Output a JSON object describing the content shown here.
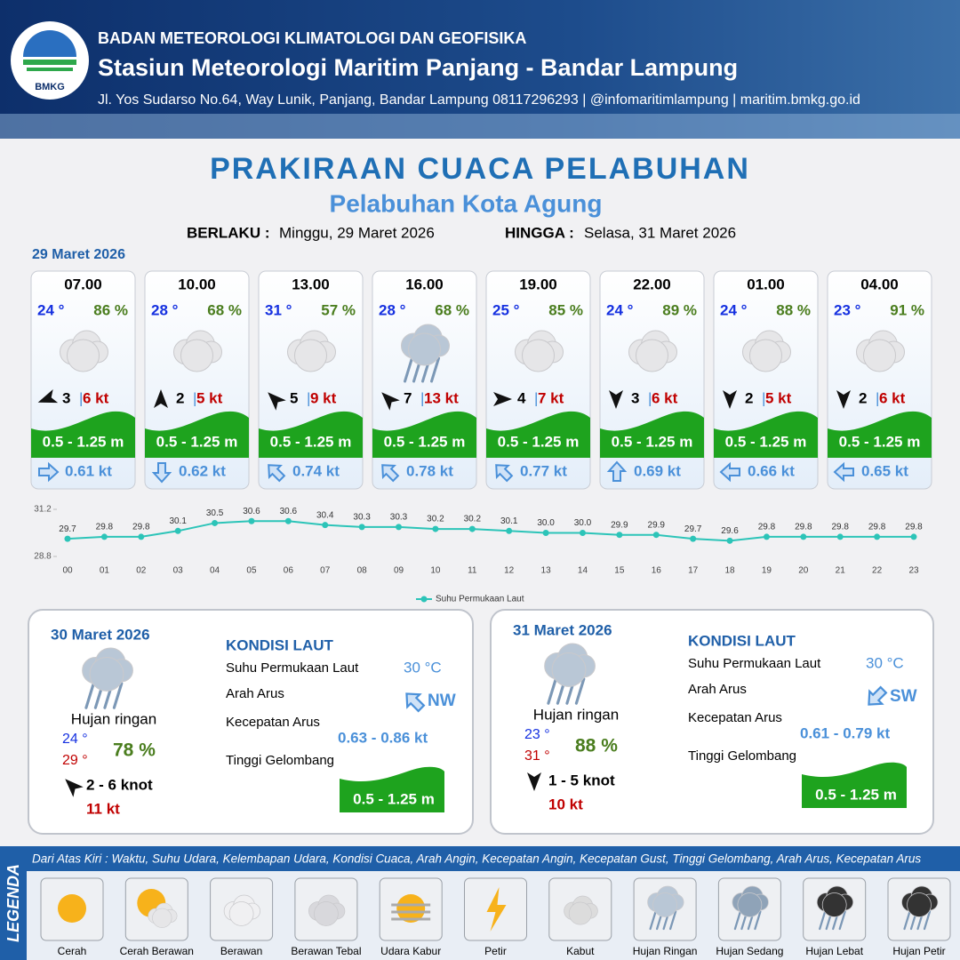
{
  "header": {
    "logo_text": "BMKG",
    "org": "BADAN METEOROLOGI KLIMATOLOGI DAN GEOFISIKA",
    "station": "Stasiun Meteorologi Maritim Panjang - Bandar Lampung",
    "address": "Jl. Yos Sudarso No.64, Way Lunik, Panjang, Bandar Lampung 08117296293 | @infomaritimlampung | maritim.bmkg.go.id"
  },
  "title": "PRAKIRAAN CUACA PELABUHAN",
  "subtitle": "Pelabuhan Kota Agung",
  "validity": {
    "from_label": "BERLAKU :",
    "from": "Minggu, 29 Maret 2026",
    "to_label": "HINGGA :",
    "to": "Selasa, 31 Maret 2026"
  },
  "day1_date": "29 Maret 2026",
  "forecasts": [
    {
      "time": "07.00",
      "temp": "24 °",
      "humidity": "86 %",
      "wind": "3",
      "gust": "6 kt",
      "wave": "0.5 - 1.25 m",
      "current": "0.61 kt"
    },
    {
      "time": "10.00",
      "temp": "28 °",
      "humidity": "68 %",
      "wind": "2",
      "gust": "5 kt",
      "wave": "0.5 - 1.25 m",
      "current": "0.62 kt"
    },
    {
      "time": "13.00",
      "temp": "31 °",
      "humidity": "57 %",
      "wind": "5",
      "gust": "9 kt",
      "wave": "0.5 - 1.25 m",
      "current": "0.74 kt"
    },
    {
      "time": "16.00",
      "temp": "28 °",
      "humidity": "68 %",
      "wind": "7",
      "gust": "13 kt",
      "wave": "0.5 - 1.25 m",
      "current": "0.78 kt"
    },
    {
      "time": "19.00",
      "temp": "25 °",
      "humidity": "85 %",
      "wind": "4",
      "gust": "7 kt",
      "wave": "0.5 - 1.25 m",
      "current": "0.77 kt"
    },
    {
      "time": "22.00",
      "temp": "24 °",
      "humidity": "89 %",
      "wind": "3",
      "gust": "6 kt",
      "wave": "0.5 - 1.25 m",
      "current": "0.69 kt"
    },
    {
      "time": "01.00",
      "temp": "24 °",
      "humidity": "88 %",
      "wind": "2",
      "gust": "5 kt",
      "wave": "0.5 - 1.25 m",
      "current": "0.66 kt"
    },
    {
      "time": "04.00",
      "temp": "23 °",
      "humidity": "91 %",
      "wind": "2",
      "gust": "6 kt",
      "wave": "0.5 - 1.25 m",
      "current": "0.65 kt"
    }
  ],
  "chart_data": {
    "type": "line",
    "categories": [
      "00",
      "01",
      "02",
      "03",
      "04",
      "05",
      "06",
      "07",
      "08",
      "09",
      "10",
      "11",
      "12",
      "13",
      "14",
      "15",
      "16",
      "17",
      "18",
      "19",
      "20",
      "21",
      "22",
      "23"
    ],
    "series": [
      {
        "name": "Suhu Permukaan Laut",
        "color": "#2cc4b8",
        "values": [
          29.7,
          29.8,
          29.8,
          30.1,
          30.5,
          30.6,
          30.6,
          30.4,
          30.3,
          30.3,
          30.2,
          30.2,
          30.1,
          30.0,
          30.0,
          29.9,
          29.9,
          29.7,
          29.6,
          29.8,
          29.8,
          29.8,
          29.8,
          29.8
        ],
        "value_labels": [
          "29.7",
          "29.8",
          "29.8",
          "30.1",
          "30.5",
          "30.6",
          "30.6",
          "30.4",
          "30.3",
          "30.3",
          "30.2",
          "30.2",
          "30.1",
          "30.0",
          "30.0",
          "29.9",
          "29.9",
          "29.7",
          "29.6",
          "29.8",
          "29.8",
          "29.8",
          "29.8",
          "29.8"
        ]
      }
    ],
    "ylim": [
      28.8,
      31.2
    ],
    "yticks": [
      28.8,
      31.2
    ],
    "legend": "bottom"
  },
  "days": [
    {
      "date": "30 Maret 2026",
      "condition": "Hujan ringan",
      "tmin": "24 °",
      "tmax": "29 °",
      "humidity": "78 %",
      "wind": "2  - 6 knot",
      "gust": "11 kt",
      "sea_title": "KONDISI LAUT",
      "sst_label": "Suhu Permukaan Laut",
      "sst": "30 °C",
      "dir_label": "Arah Arus",
      "dir": "NW",
      "speed_label": "Kecepatan Arus",
      "speed": "0.63 - 0.86 kt",
      "wave_label": "Tinggi Gelombang",
      "wave": "0.5 - 1.25 m"
    },
    {
      "date": "31 Maret 2026",
      "condition": "Hujan ringan",
      "tmin": "23 °",
      "tmax": "31 °",
      "humidity": "88 %",
      "wind": "1  - 5 knot",
      "gust": "10 kt",
      "sea_title": "KONDISI LAUT",
      "sst_label": "Suhu Permukaan Laut",
      "sst": "30 °C",
      "dir_label": "Arah Arus",
      "dir": "SW",
      "speed_label": "Kecepatan Arus",
      "speed": "0.61 -  0.79 kt",
      "wave_label": "Tinggi Gelombang",
      "wave": "0.5 - 1.25 m"
    }
  ],
  "legend": {
    "title": "LEGENDA",
    "note": "Dari Atas Kiri : Waktu, Suhu Udara, Kelembapan Udara, Kondisi Cuaca, Arah Angin, Kecepatan Angin, Kecepatan Gust, Tinggi Gelombang, Arah Arus, Kecepatan Arus",
    "items": [
      "Cerah",
      "Cerah Berawan",
      "Berawan",
      "Berawan Tebal",
      "Udara Kabur",
      "Petir",
      "Kabut",
      "Hujan Ringan",
      "Hujan Sedang",
      "Hujan Lebat",
      "Hujan Petir"
    ]
  }
}
